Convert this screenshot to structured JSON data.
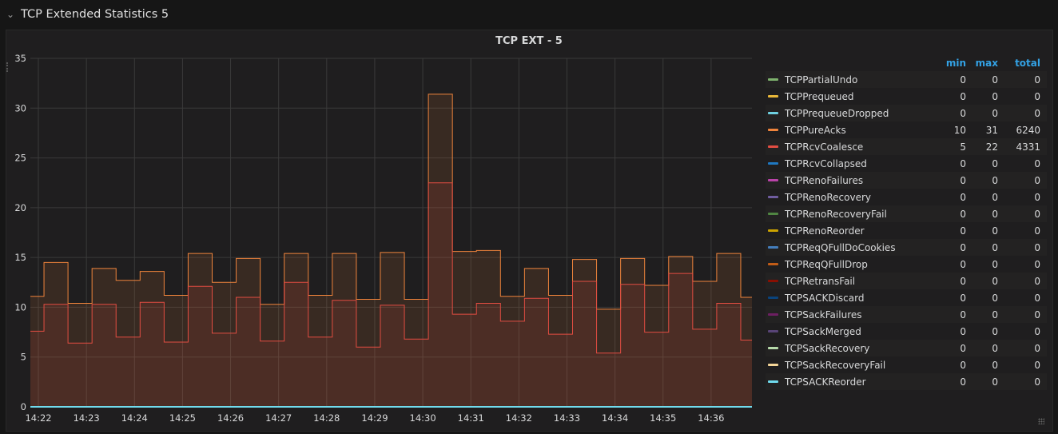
{
  "row_title": "TCP Extended Statistics 5",
  "panel_title": "TCP EXT - 5",
  "legend": {
    "columns": [
      "min",
      "max",
      "total"
    ],
    "items": [
      {
        "name": "TCPPartialUndo",
        "color": "#7eb26d",
        "min": "0",
        "max": "0",
        "total": "0"
      },
      {
        "name": "TCPPrequeued",
        "color": "#eab839",
        "min": "0",
        "max": "0",
        "total": "0"
      },
      {
        "name": "TCPPrequeueDropped",
        "color": "#6ed0e0",
        "min": "0",
        "max": "0",
        "total": "0"
      },
      {
        "name": "TCPPureAcks",
        "color": "#ef843c",
        "min": "10",
        "max": "31",
        "total": "6240"
      },
      {
        "name": "TCPRcvCoalesce",
        "color": "#e24d42",
        "min": "5",
        "max": "22",
        "total": "4331"
      },
      {
        "name": "TCPRcvCollapsed",
        "color": "#1f78c1",
        "min": "0",
        "max": "0",
        "total": "0"
      },
      {
        "name": "TCPRenoFailures",
        "color": "#ba43a9",
        "min": "0",
        "max": "0",
        "total": "0"
      },
      {
        "name": "TCPRenoRecovery",
        "color": "#705da0",
        "min": "0",
        "max": "0",
        "total": "0"
      },
      {
        "name": "TCPRenoRecoveryFail",
        "color": "#508642",
        "min": "0",
        "max": "0",
        "total": "0"
      },
      {
        "name": "TCPRenoReorder",
        "color": "#cca300",
        "min": "0",
        "max": "0",
        "total": "0"
      },
      {
        "name": "TCPReqQFullDoCookies",
        "color": "#447ebc",
        "min": "0",
        "max": "0",
        "total": "0"
      },
      {
        "name": "TCPReqQFullDrop",
        "color": "#c15c17",
        "min": "0",
        "max": "0",
        "total": "0"
      },
      {
        "name": "TCPRetransFail",
        "color": "#890f02",
        "min": "0",
        "max": "0",
        "total": "0"
      },
      {
        "name": "TCPSACKDiscard",
        "color": "#0a437c",
        "min": "0",
        "max": "0",
        "total": "0"
      },
      {
        "name": "TCPSackFailures",
        "color": "#6d1f62",
        "min": "0",
        "max": "0",
        "total": "0"
      },
      {
        "name": "TCPSackMerged",
        "color": "#584477",
        "min": "0",
        "max": "0",
        "total": "0"
      },
      {
        "name": "TCPSackRecovery",
        "color": "#b7dbab",
        "min": "0",
        "max": "0",
        "total": "0"
      },
      {
        "name": "TCPSackRecoveryFail",
        "color": "#f4d598",
        "min": "0",
        "max": "0",
        "total": "0"
      },
      {
        "name": "TCPSACKReorder",
        "color": "#70dbed",
        "min": "0",
        "max": "0",
        "total": "0"
      }
    ]
  },
  "chart_data": {
    "type": "area",
    "step": true,
    "title": "TCP EXT - 5",
    "xlim": [
      "14:21:50",
      "14:36:51"
    ],
    "ylim": [
      0,
      35
    ],
    "yticks": [
      0,
      5,
      10,
      15,
      20,
      25,
      30,
      35
    ],
    "xticks": [
      "14:22",
      "14:23",
      "14:24",
      "14:25",
      "14:26",
      "14:27",
      "14:28",
      "14:29",
      "14:30",
      "14:31",
      "14:32",
      "14:33",
      "14:34",
      "14:35",
      "14:36"
    ],
    "grid": true,
    "legend_placement": "right",
    "x": [
      "14:21:37",
      "14:22:07",
      "14:22:37",
      "14:23:07",
      "14:23:37",
      "14:24:07",
      "14:24:37",
      "14:25:07",
      "14:25:37",
      "14:26:07",
      "14:26:37",
      "14:27:07",
      "14:27:37",
      "14:28:07",
      "14:28:37",
      "14:29:07",
      "14:29:37",
      "14:30:07",
      "14:30:37",
      "14:31:07",
      "14:31:37",
      "14:32:07",
      "14:32:37",
      "14:33:07",
      "14:33:37",
      "14:34:07",
      "14:34:37",
      "14:35:07",
      "14:35:37",
      "14:36:07",
      "14:36:37"
    ],
    "series": [
      {
        "name": "TCPPureAcks",
        "color": "#ef843c",
        "values": [
          11.1,
          14.5,
          10.4,
          13.9,
          12.7,
          13.6,
          11.2,
          15.4,
          12.5,
          14.9,
          10.3,
          15.4,
          11.2,
          15.4,
          10.8,
          15.5,
          10.8,
          31.4,
          15.6,
          15.7,
          11.1,
          13.9,
          11.2,
          14.8,
          9.8,
          14.9,
          12.2,
          15.1,
          12.6,
          15.4,
          11.0
        ]
      },
      {
        "name": "TCPRcvCoalesce",
        "color": "#e24d42",
        "values": [
          7.6,
          10.3,
          6.4,
          10.3,
          7.0,
          10.5,
          6.5,
          12.1,
          7.4,
          11.0,
          6.6,
          12.5,
          7.0,
          10.7,
          6.0,
          10.2,
          6.8,
          22.5,
          9.3,
          10.4,
          8.6,
          10.9,
          7.3,
          12.6,
          5.4,
          12.3,
          7.5,
          13.4,
          7.8,
          10.4,
          6.7
        ]
      },
      {
        "name": "TCPSACKReorder",
        "color": "#70dbed",
        "values": [
          0,
          0,
          0,
          0,
          0,
          0,
          0,
          0,
          0,
          0,
          0,
          0,
          0,
          0,
          0,
          0,
          0,
          0,
          0,
          0,
          0,
          0,
          0,
          0,
          0,
          0,
          0,
          0,
          0,
          0,
          0
        ]
      }
    ]
  }
}
